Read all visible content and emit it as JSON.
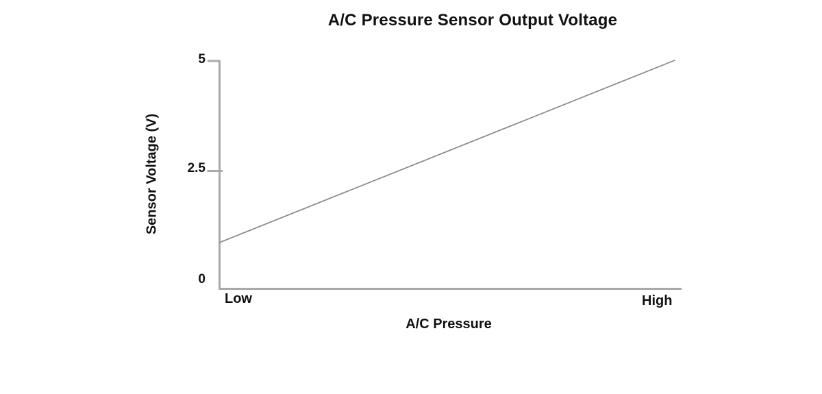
{
  "page": {
    "background": "#ffffff"
  },
  "chart_data": {
    "type": "line",
    "title": "A/C Pressure Sensor Output Voltage",
    "xlabel": "A/C Pressure",
    "ylabel": "Sensor Voltage (V)",
    "x_tick_labels": [
      "Low",
      "High"
    ],
    "ytick_labels_top_to_bottom": [
      "5",
      "2.5",
      "0"
    ],
    "yticks": [
      0,
      2.5,
      5
    ],
    "ylim": [
      0,
      5
    ],
    "grid": false,
    "legend": "none",
    "series": [
      {
        "name": "sensor-output-voltage",
        "points": [
          {
            "x": "Low",
            "y": 0.9
          },
          {
            "x": "High",
            "y": 5.0
          }
        ]
      }
    ],
    "colors": {
      "line": "#8a8886",
      "axis": "#aaa8a8",
      "text": "#111111"
    }
  }
}
